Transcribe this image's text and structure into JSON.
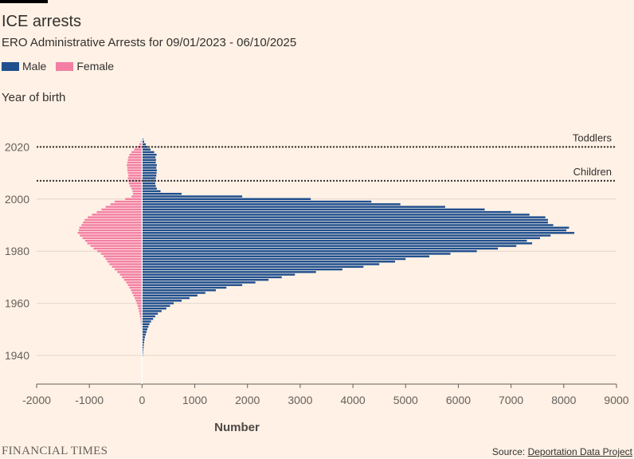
{
  "header": {
    "title": "ICE arrests",
    "subtitle": "ERO Administrative Arrests for 09/01/2023 - 06/10/2025"
  },
  "legend": [
    {
      "label": "Male",
      "color": "#1f4f8e"
    },
    {
      "label": "Female",
      "color": "#f37fa4"
    }
  ],
  "footer": {
    "logo": "FINANCIAL TIMES",
    "source_prefix": "Source: ",
    "source_link": "Deportation Data Project"
  },
  "chart_data": {
    "type": "bar",
    "orientation": "horizontal",
    "ylabel": "Year of birth",
    "xlabel": "Number",
    "xlim": [
      -2000,
      9000
    ],
    "ylim": [
      1929,
      2025
    ],
    "x_ticks": [
      "-2000",
      "-1000",
      "0",
      "1000",
      "2000",
      "3000",
      "4000",
      "5000",
      "6000",
      "7000",
      "8000",
      "9000"
    ],
    "x_tick_values": [
      -2000,
      -1000,
      0,
      1000,
      2000,
      3000,
      4000,
      5000,
      6000,
      7000,
      8000,
      9000
    ],
    "y_ticks": [
      "1940",
      "1960",
      "1980",
      "2000",
      "2020"
    ],
    "y_tick_values": [
      1940,
      1960,
      1980,
      2000,
      2020
    ],
    "grid": true,
    "legend_position": "top-left",
    "annotations": [
      {
        "label": "Toddlers",
        "year": 2020
      },
      {
        "label": "Children",
        "year": 2007
      }
    ],
    "years": [
      1940,
      1941,
      1942,
      1943,
      1944,
      1945,
      1946,
      1947,
      1948,
      1949,
      1950,
      1951,
      1952,
      1953,
      1954,
      1955,
      1956,
      1957,
      1958,
      1959,
      1960,
      1961,
      1962,
      1963,
      1964,
      1965,
      1966,
      1967,
      1968,
      1969,
      1970,
      1971,
      1972,
      1973,
      1974,
      1975,
      1976,
      1977,
      1978,
      1979,
      1980,
      1981,
      1982,
      1983,
      1984,
      1985,
      1986,
      1987,
      1988,
      1989,
      1990,
      1991,
      1992,
      1993,
      1994,
      1995,
      1996,
      1997,
      1998,
      1999,
      2000,
      2001,
      2002,
      2003,
      2004,
      2005,
      2006,
      2007,
      2008,
      2009,
      2010,
      2011,
      2012,
      2013,
      2014,
      2015,
      2016,
      2017,
      2018,
      2019,
      2020,
      2021,
      2022,
      2023,
      2024
    ],
    "series": [
      {
        "name": "Male",
        "color": "#1f4f8e",
        "values": [
          15,
          18,
          22,
          28,
          32,
          38,
          45,
          55,
          70,
          85,
          100,
          120,
          140,
          170,
          210,
          250,
          300,
          370,
          460,
          530,
          600,
          750,
          900,
          1050,
          1200,
          1400,
          1600,
          1900,
          2150,
          2400,
          2650,
          2900,
          3300,
          3800,
          4200,
          4500,
          4800,
          5000,
          5450,
          5850,
          6350,
          6750,
          7100,
          7400,
          7300,
          7550,
          7750,
          8200,
          8050,
          8100,
          7800,
          7700,
          7700,
          7650,
          7350,
          7000,
          6500,
          5750,
          4900,
          4350,
          3200,
          1900,
          750,
          350,
          280,
          260,
          250,
          255,
          260,
          270,
          275,
          280,
          270,
          280,
          260,
          265,
          255,
          275,
          230,
          160,
          110,
          70,
          40,
          20,
          8
        ]
      },
      {
        "name": "Female",
        "color": "#f37fa4",
        "values": [
          3,
          3,
          4,
          4,
          5,
          6,
          7,
          8,
          9,
          10,
          12,
          15,
          20,
          25,
          30,
          40,
          50,
          60,
          70,
          85,
          100,
          120,
          140,
          165,
          190,
          210,
          240,
          270,
          300,
          340,
          380,
          420,
          470,
          520,
          570,
          620,
          660,
          690,
          730,
          780,
          850,
          920,
          980,
          1040,
          1080,
          1130,
          1180,
          1220,
          1200,
          1190,
          1150,
          1120,
          1090,
          1030,
          950,
          860,
          770,
          690,
          600,
          520,
          320,
          200,
          170,
          180,
          200,
          230,
          250,
          260,
          270,
          260,
          270,
          280,
          280,
          290,
          280,
          270,
          260,
          240,
          200,
          150,
          90,
          50,
          25,
          10,
          4
        ]
      }
    ]
  }
}
